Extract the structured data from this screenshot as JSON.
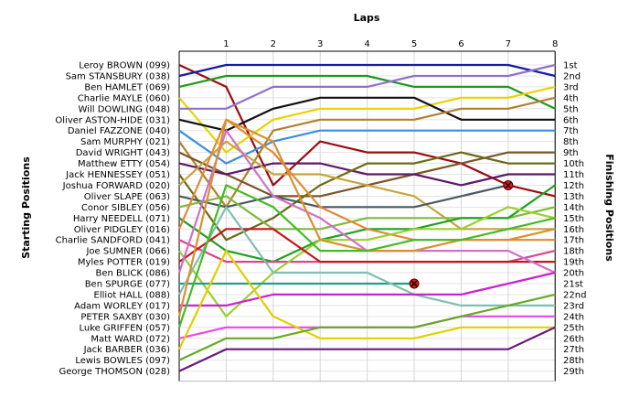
{
  "chart_data": {
    "type": "line",
    "title": "",
    "xlabel": "Laps",
    "ylabel_left": "Starting Positions",
    "ylabel_right": "Finishing Positions",
    "laps": [
      0,
      1,
      2,
      3,
      4,
      5,
      6,
      7,
      8
    ],
    "x_tick_labels": [
      "1",
      "2",
      "3",
      "4",
      "5",
      "6",
      "7",
      "8"
    ],
    "finishing_labels": [
      "1st",
      "2nd",
      "3rd",
      "4th",
      "5th",
      "6th",
      "7th",
      "8th",
      "9th",
      "10th",
      "11th",
      "12th",
      "13th",
      "14th",
      "15th",
      "16th",
      "17th",
      "18th",
      "19th",
      "20th",
      "21st",
      "22nd",
      "23rd",
      "24th",
      "25th",
      "26th",
      "27th",
      "28th",
      "29th"
    ],
    "grid": true,
    "series": [
      {
        "name": "Leroy BROWN (099)",
        "color": "#9a0d12",
        "positions": [
          1,
          3,
          12,
          8,
          9,
          9,
          10,
          12,
          13
        ]
      },
      {
        "name": "Sam STANSBURY (038)",
        "color": "#1a1aa6",
        "positions": [
          2,
          1,
          1,
          1,
          1,
          1,
          1,
          1,
          2
        ]
      },
      {
        "name": "Ben HAMLET (069)",
        "color": "#1f9a1f",
        "positions": [
          3,
          2,
          2,
          2,
          2,
          3,
          3,
          3,
          5
        ]
      },
      {
        "name": "Charlie MAYLE (060)",
        "color": "#e8d400",
        "positions": [
          4,
          9,
          6,
          5,
          5,
          5,
          4,
          4,
          3
        ]
      },
      {
        "name": "Will DOWLING (048)",
        "color": "#8f73c9",
        "positions": [
          5,
          5,
          3,
          3,
          3,
          2,
          2,
          2,
          1
        ]
      },
      {
        "name": "Oliver ASTON-HIDE (031)",
        "color": "#111111",
        "positions": [
          6,
          7,
          5,
          4,
          4,
          4,
          6,
          6,
          6
        ]
      },
      {
        "name": "Daniel FAZZONE (040)",
        "color": "#3a8de0",
        "positions": [
          7,
          10,
          8,
          7,
          7,
          7,
          7,
          7,
          7
        ]
      },
      {
        "name": "Sam MURPHY (021)",
        "color": "#b0812c",
        "positions": [
          8,
          14,
          7,
          6,
          6,
          6,
          5,
          5,
          4
        ]
      },
      {
        "name": "David WRIGHT (043)",
        "color": "#7a5528",
        "positions": [
          9,
          11,
          13,
          13,
          12,
          11,
          10,
          9,
          9
        ]
      },
      {
        "name": "Matthew ETTY (054)",
        "color": "#5c1a68",
        "positions": [
          10,
          11,
          10,
          10,
          11,
          11,
          12,
          11,
          11
        ]
      },
      {
        "name": "Jack HENNESSEY (051)",
        "color": "#6b6b14",
        "positions": [
          11,
          17,
          15,
          12,
          10,
          10,
          9,
          10,
          10
        ]
      },
      {
        "name": "Joshua FORWARD (020)",
        "color": "#c8a43c",
        "positions": [
          12,
          8,
          11,
          11,
          12,
          13,
          16,
          16,
          16
        ]
      },
      {
        "name": "Oliver SLAPE (063)",
        "color": "#4a5a5e",
        "positions": [
          13,
          14,
          13,
          14,
          14,
          14,
          13,
          12
        ]
      },
      {
        "name": "Conor SIBLEY (056)",
        "color": "#7fba3b",
        "positions": [
          14,
          13,
          16,
          16,
          15,
          15,
          15,
          15,
          14
        ]
      },
      {
        "name": "Harry NEEDELL (071)",
        "color": "#20a020",
        "positions": [
          15,
          18,
          19,
          17,
          16,
          16,
          15,
          15,
          12
        ]
      },
      {
        "name": "Oliver PIDGLEY (016)",
        "color": "#e08a3a",
        "positions": [
          16,
          6,
          9,
          14,
          16,
          17,
          17,
          17,
          17
        ]
      },
      {
        "name": "Charlie SANDFORD (041)",
        "color": "#dd4488",
        "positions": [
          17,
          19,
          19,
          19,
          19,
          19,
          19,
          19,
          18
        ]
      },
      {
        "name": "Joe SUMNER (066)",
        "color": "#9ad02e",
        "positions": [
          18,
          24,
          20,
          17,
          17,
          16,
          16,
          14,
          15
        ]
      },
      {
        "name": "Myles POTTER (019)",
        "color": "#c8141a",
        "positions": [
          19,
          16,
          16,
          19,
          19,
          19,
          19,
          19,
          19
        ]
      },
      {
        "name": "Ben BLICK (086)",
        "color": "#d070c8",
        "positions": [
          20,
          7,
          13,
          15,
          18,
          18,
          18,
          18,
          20
        ]
      },
      {
        "name": "Ben SPURGE (077)",
        "color": "#2a9a8a",
        "positions": [
          21,
          21,
          21,
          21,
          21,
          21
        ]
      },
      {
        "name": "Elliot HALL (088)",
        "color": "#7ec0b0",
        "positions": [
          22,
          14,
          20,
          20,
          20,
          22,
          23,
          23,
          23
        ]
      },
      {
        "name": "Adam WORLEY (017)",
        "color": "#cc22cc",
        "positions": [
          23,
          23,
          22,
          22,
          22,
          22,
          22,
          21,
          20
        ]
      },
      {
        "name": "PETER SAXBY (030)",
        "color": "#d89030",
        "positions": [
          24,
          6,
          8,
          17,
          18,
          18,
          17,
          17,
          16
        ]
      },
      {
        "name": "Luke GRIFFEN (057)",
        "color": "#44bb22",
        "positions": [
          25,
          12,
          14,
          18,
          18,
          17,
          17,
          16,
          15
        ]
      },
      {
        "name": "Matt WARD (072)",
        "color": "#ee44ee",
        "positions": [
          26,
          25,
          25,
          25,
          25,
          25,
          24,
          24,
          24
        ]
      },
      {
        "name": "Jack BARBER (036)",
        "color": "#e0d000",
        "positions": [
          27,
          18,
          24,
          26,
          26,
          26,
          25,
          25,
          25
        ]
      },
      {
        "name": "Lewis BOWLES (097)",
        "color": "#66aa22",
        "positions": [
          28,
          26,
          26,
          25,
          25,
          25,
          24,
          23,
          22
        ]
      },
      {
        "name": "George THOMSON (028)",
        "color": "#6a1a7a",
        "positions": [
          29,
          27,
          27,
          27,
          27,
          27,
          27,
          27,
          25
        ]
      }
    ],
    "retirements": [
      {
        "driver": "Oliver SLAPE (063)",
        "lap": 7,
        "position": 12
      },
      {
        "driver": "Ben SPURGE (077)",
        "lap": 5,
        "position": 21
      }
    ]
  }
}
